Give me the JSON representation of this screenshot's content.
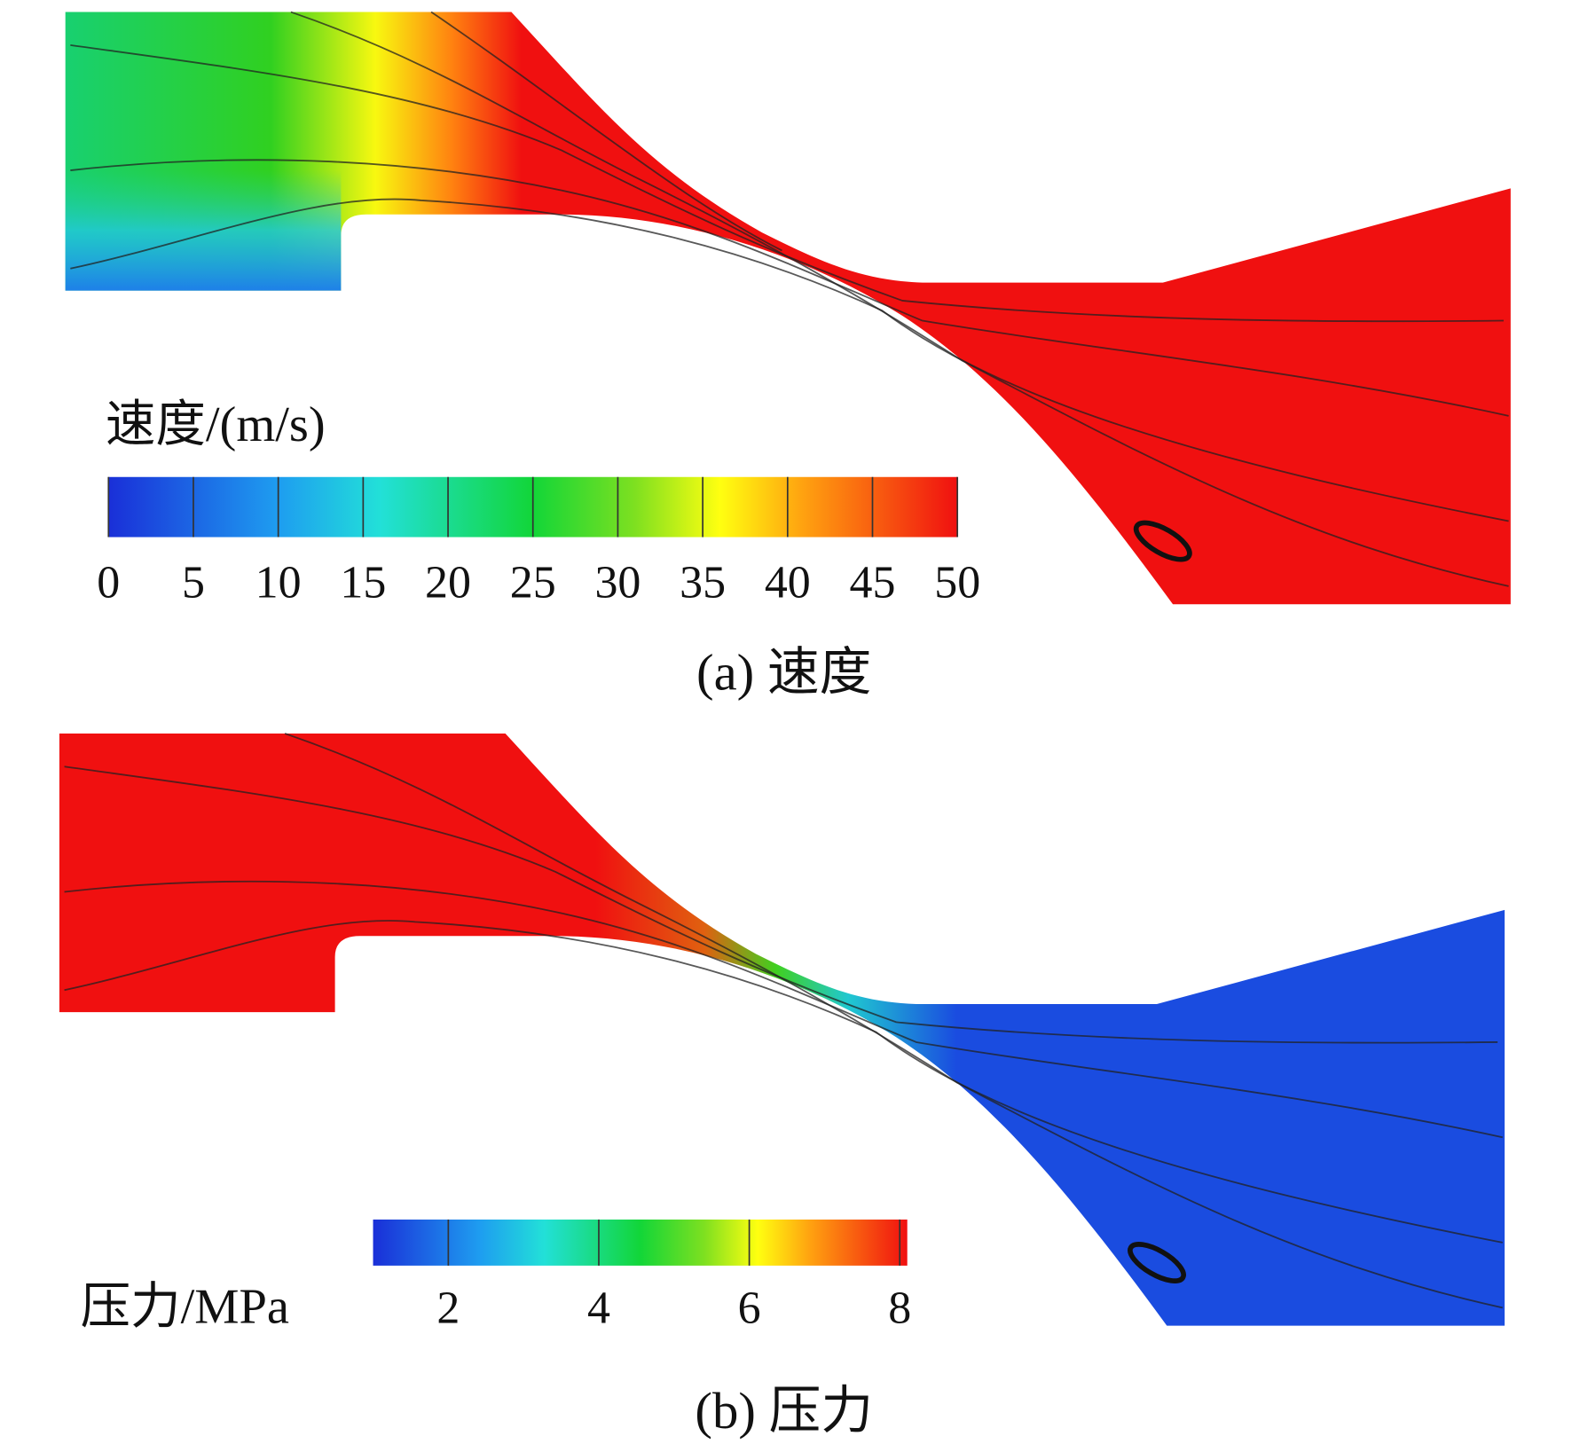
{
  "panels": [
    {
      "caption": "(a) 速度",
      "colorbar": {
        "title": "速度/(m/s)",
        "range": [
          0,
          50
        ],
        "ticks": [
          0,
          5,
          10,
          15,
          20,
          25,
          30,
          35,
          40,
          45,
          50
        ]
      }
    },
    {
      "caption": "(b) 压力",
      "colorbar": {
        "title": "压力/MPa",
        "range": [
          1,
          8.1
        ],
        "ticks": [
          2,
          4,
          6,
          8
        ]
      }
    }
  ]
}
